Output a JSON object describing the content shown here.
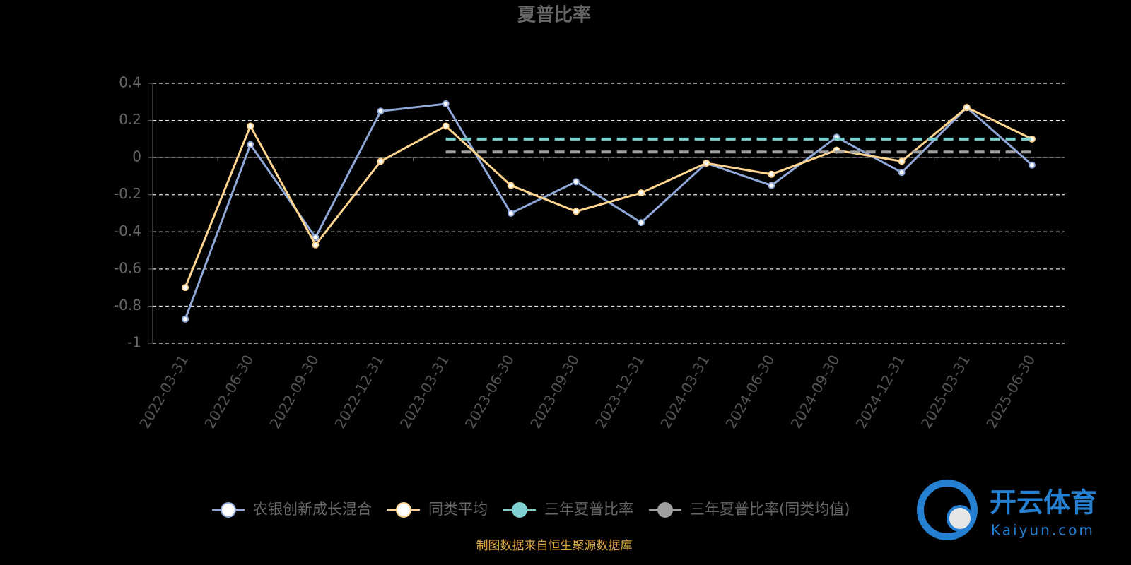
{
  "chart_data": {
    "type": "line",
    "title": "夏普比率",
    "categories": [
      "2022-03-31",
      "2022-06-30",
      "2022-09-30",
      "2022-12-31",
      "2023-03-31",
      "2023-06-30",
      "2023-09-30",
      "2023-12-31",
      "2024-03-31",
      "2024-06-30",
      "2024-09-30",
      "2024-12-31",
      "2025-03-31",
      "2025-06-30"
    ],
    "series": [
      {
        "name": "农银创新成长混合",
        "color": "#8fa8d8",
        "values": [
          -0.87,
          0.07,
          -0.43,
          0.25,
          0.29,
          -0.3,
          -0.13,
          -0.35,
          -0.03,
          -0.15,
          0.11,
          -0.08,
          0.27,
          -0.04
        ]
      },
      {
        "name": "同类平均",
        "color": "#ffd58f",
        "values": [
          -0.7,
          0.17,
          -0.47,
          -0.02,
          0.17,
          -0.15,
          -0.29,
          -0.19,
          -0.03,
          -0.09,
          0.04,
          -0.02,
          0.27,
          0.1
        ]
      },
      {
        "name": "三年夏普比率",
        "color": "#7fd0d0",
        "dashed": true,
        "values": [
          null,
          null,
          null,
          null,
          0.1,
          0.1,
          0.1,
          0.1,
          0.1,
          0.1,
          0.1,
          0.1,
          0.1,
          0.1
        ]
      },
      {
        "name": "三年夏普比率(同类均值)",
        "color": "#a0a0a0",
        "dashed": true,
        "values": [
          null,
          null,
          null,
          null,
          0.03,
          0.03,
          0.03,
          0.03,
          0.03,
          0.03,
          0.03,
          0.03,
          0.03,
          0.03
        ]
      }
    ],
    "ylim": [
      -1,
      0.4
    ],
    "yticks": [
      -1,
      -0.8,
      -0.6,
      -0.4,
      -0.2,
      0,
      0.2,
      0.4
    ],
    "grid": true,
    "source": "制图数据来自恒生聚源数据库",
    "watermark": {
      "brand": "开云体育",
      "site": "Kaiyun.com"
    }
  }
}
